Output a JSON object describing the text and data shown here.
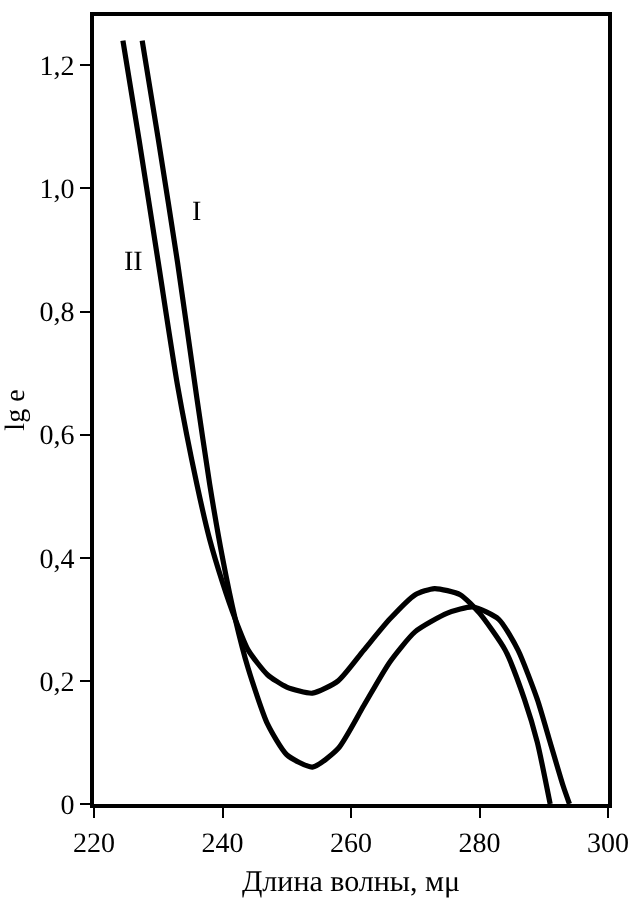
{
  "chart_data": {
    "type": "line",
    "xlabel": "Длина волны, мμ",
    "ylabel": "lg e",
    "xlim": [
      220,
      300
    ],
    "xticks": [
      220,
      240,
      260,
      280,
      300
    ],
    "ylim": [
      0,
      1.28
    ],
    "yticks": [
      0,
      {
        "value": 0.2,
        "label": "0,2"
      },
      {
        "value": 0.4,
        "label": "0,4"
      },
      {
        "value": 0.6,
        "label": "0,6"
      },
      {
        "value": 0.8,
        "label": "0,8"
      },
      {
        "value": 1.0,
        "label": "1,0"
      },
      {
        "value": 1.2,
        "label": "1,2"
      }
    ],
    "legend": false,
    "marker": "none",
    "line_style": "solid",
    "series": [
      {
        "name": "I",
        "color": "#000000",
        "x": [
          227.5,
          230,
          233,
          236,
          238,
          240,
          242,
          244,
          247,
          250,
          254,
          258,
          262,
          266,
          270,
          275,
          279,
          283,
          286,
          289,
          291,
          293,
          294
        ],
        "values": [
          1.24,
          1.08,
          0.88,
          0.66,
          0.52,
          0.4,
          0.3,
          0.22,
          0.13,
          0.08,
          0.06,
          0.09,
          0.16,
          0.23,
          0.28,
          0.31,
          0.32,
          0.3,
          0.25,
          0.17,
          0.1,
          0.03,
          0
        ]
      },
      {
        "name": "II",
        "color": "#000000",
        "x": [
          224.5,
          227,
          230,
          233,
          236,
          238,
          240,
          242,
          244,
          247,
          250,
          254,
          258,
          262,
          266,
          270,
          273,
          277,
          280,
          284,
          287,
          289,
          291
        ],
        "values": [
          1.24,
          1.08,
          0.88,
          0.68,
          0.52,
          0.43,
          0.36,
          0.3,
          0.25,
          0.21,
          0.19,
          0.18,
          0.2,
          0.25,
          0.3,
          0.34,
          0.35,
          0.34,
          0.31,
          0.25,
          0.17,
          0.1,
          0
        ]
      }
    ]
  }
}
